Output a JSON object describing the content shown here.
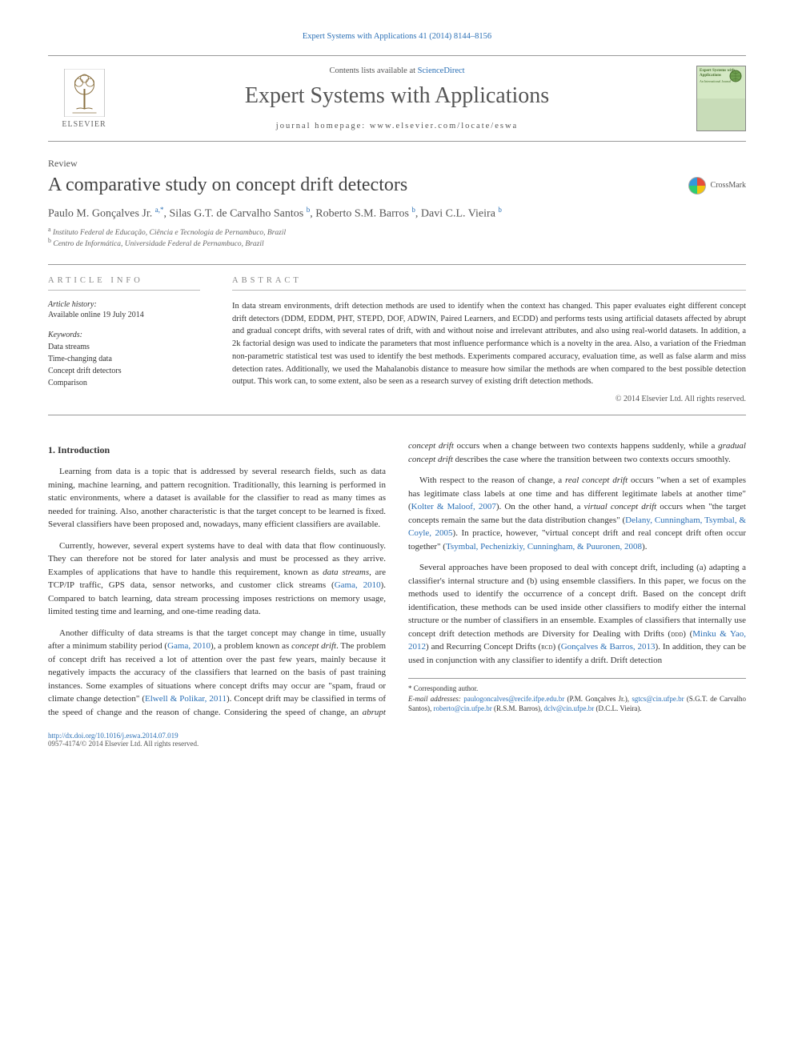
{
  "journal": {
    "citation_link": "Expert Systems with Applications 41 (2014) 8144–8156",
    "contents_prefix": "Contents lists available at ",
    "contents_link": "ScienceDirect",
    "name": "Expert Systems with Applications",
    "homepage_prefix": "journal homepage: ",
    "homepage_url": "www.elsevier.com/locate/eswa",
    "publisher": "ELSEVIER",
    "cover_title": "Expert Systems with Applications",
    "cover_subtitle": "An International Journal"
  },
  "article": {
    "type": "Review",
    "title": "A comparative study on concept drift detectors",
    "crossmark": "CrossMark",
    "authors_html": "Paulo M. Gonçalves Jr. <sup>a,*</sup>, Silas G.T. de Carvalho Santos <sup>b</sup>, Roberto S.M. Barros <sup>b</sup>, Davi C.L. Vieira <sup>b</sup>",
    "affiliations": [
      {
        "sup": "a",
        "text": "Instituto Federal de Educação, Ciência e Tecnologia de Pernambuco, Brazil"
      },
      {
        "sup": "b",
        "text": "Centro de Informática, Universidade Federal de Pernambuco, Brazil"
      }
    ]
  },
  "info": {
    "heading": "ARTICLE INFO",
    "history_label": "Article history:",
    "history_value": "Available online 19 July 2014",
    "keywords_label": "Keywords:",
    "keywords": [
      "Data streams",
      "Time-changing data",
      "Concept drift detectors",
      "Comparison"
    ]
  },
  "abstract": {
    "heading": "ABSTRACT",
    "text": "In data stream environments, drift detection methods are used to identify when the context has changed. This paper evaluates eight different concept drift detectors (DDM, EDDM, PHT, STEPD, DOF, ADWIN, Paired Learners, and ECDD) and performs tests using artificial datasets affected by abrupt and gradual concept drifts, with several rates of drift, with and without noise and irrelevant attributes, and also using real-world datasets. In addition, a 2k factorial design was used to indicate the parameters that most influence performance which is a novelty in the area. Also, a variation of the Friedman non-parametric statistical test was used to identify the best methods. Experiments compared accuracy, evaluation time, as well as false alarm and miss detection rates. Additionally, we used the Mahalanobis distance to measure how similar the methods are when compared to the best possible detection output. This work can, to some extent, also be seen as a research survey of existing drift detection methods.",
    "copyright": "© 2014 Elsevier Ltd. All rights reserved."
  },
  "body": {
    "section_title": "1. Introduction",
    "p1": "Learning from data is a topic that is addressed by several research fields, such as data mining, machine learning, and pattern recognition. Traditionally, this learning is performed in static environments, where a dataset is available for the classifier to read as many times as needed for training. Also, another characteristic is that the target concept to be learned is fixed. Several classifiers have been proposed and, nowadays, many efficient classifiers are available.",
    "p2_a": "Currently, however, several expert systems have to deal with data that flow continuously. They can therefore not be stored for later analysis and must be processed as they arrive. Examples of applications that have to handle this requirement, known as ",
    "p2_em": "data streams",
    "p2_b": ", are TCP/IP traffic, GPS data, sensor networks, and customer click streams (",
    "p2_cite": "Gama, 2010",
    "p2_c": "). Compared to batch learning, data stream processing imposes restrictions on memory usage, limited testing time and learning, and one-time reading data.",
    "p3_a": "Another difficulty of data streams is that the target concept may change in time, usually after a minimum stability period (",
    "p3_cite1": "Gama, 2010",
    "p3_b": "), a problem known as ",
    "p3_em": "concept drift",
    "p3_c": ". The problem of concept drift has received a lot of attention over the past few years, mainly because it negatively impacts the accuracy of the classifiers that ",
    "p3_d": "learned on the basis of past training instances. Some examples of situations where concept drifts may occur are \"spam, fraud or climate change detection\" (",
    "p3_cite2": "Elwell & Polikar, 2011",
    "p3_e": "). Concept drift may be classified in terms of the speed of change and the reason of change. Considering the speed of change, an ",
    "p3_em2": "abrupt concept drift",
    "p3_f": " occurs when a change between two contexts happens suddenly, while a ",
    "p3_em3": "gradual concept drift",
    "p3_g": " describes the case where the transition between two contexts occurs smoothly.",
    "p4_a": "With respect to the reason of change, a ",
    "p4_em1": "real concept drift",
    "p4_b": " occurs \"when a set of examples has legitimate class labels at one time and has different legitimate labels at another time\" (",
    "p4_cite1": "Kolter & Maloof, 2007",
    "p4_c": "). On the other hand, a ",
    "p4_em2": "virtual concept drift",
    "p4_d": " occurs when \"the target concepts remain the same but the data distribution changes\" (",
    "p4_cite2": "Delany, Cunningham, Tsymbal, & Coyle, 2005",
    "p4_e": "). In practice, however, \"virtual concept drift and real concept drift often occur together\" (",
    "p4_cite3": "Tsymbal, Pechenizkiy, Cunningham, & Puuronen, 2008",
    "p4_f": ").",
    "p5_a": "Several approaches have been proposed to deal with concept drift, including (a) adapting a classifier's internal structure and (b) using ensemble classifiers. In this paper, we focus on the methods used to identify the occurrence of a concept drift. Based on the concept drift identification, these methods can be used inside other classifiers to modify either the internal structure or the number of classifiers in an ensemble. Examples of classifiers that internally use concept drift detection methods are Diversity for Dealing with Drifts (",
    "p5_sc1": "ddd",
    "p5_b": ") (",
    "p5_cite1": "Minku & Yao, 2012",
    "p5_c": ") and Recurring Concept Drifts (",
    "p5_sc2": "rcd",
    "p5_d": ") (",
    "p5_cite2": "Gonçalves & Barros, 2013",
    "p5_e": "). In addition, they can be used in conjunction with any classifier to identify a drift. Drift detection"
  },
  "footnotes": {
    "corresp": "* Corresponding author.",
    "emails_label": "E-mail addresses: ",
    "emails": [
      {
        "addr": "paulogoncalves@recife.ifpe.edu.br",
        "who": " (P.M. Gonçalves Jr.), "
      },
      {
        "addr": "sgtcs@cin.ufpe.br",
        "who": " (S.G.T. de Carvalho Santos), "
      },
      {
        "addr": "roberto@cin.ufpe.br",
        "who": " (R.S.M. Barros), "
      },
      {
        "addr": "dclv@cin.ufpe.br",
        "who": " (D.C.L. Vieira)."
      }
    ]
  },
  "bottom": {
    "doi": "http://dx.doi.org/10.1016/j.eswa.2014.07.019",
    "issn_line": "0957-4174/© 2014 Elsevier Ltd. All rights reserved."
  },
  "colors": {
    "link": "#2a6fb5",
    "text": "#333",
    "muted": "#666",
    "rule": "#999"
  }
}
